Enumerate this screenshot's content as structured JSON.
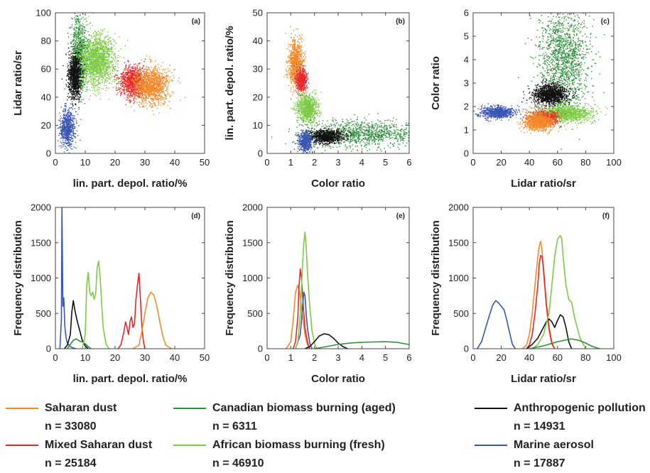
{
  "colors": {
    "saharan": "#f28a2b",
    "mixed": "#e8262a",
    "canadian": "#2f8f3a",
    "african": "#7ccb45",
    "anthro": "#111111",
    "marine": "#3a55b4"
  },
  "chart_data": [
    {
      "type": "scatter",
      "panel": "a",
      "xlabel": "lin. part. depol. ratio/%",
      "ylabel": "Lidar ratio/sr",
      "xlim": [
        0,
        50
      ],
      "ylim": [
        0,
        100
      ],
      "xticks": [
        "0",
        "10",
        "20",
        "30",
        "40",
        "50"
      ],
      "yticks": [
        "0",
        "20",
        "40",
        "60",
        "80",
        "100"
      ],
      "clusters": [
        {
          "series": "canadian",
          "cx": 8,
          "cy": 70,
          "sx": 1.5,
          "sy": 13,
          "n": 900
        },
        {
          "series": "african",
          "cx": 14,
          "cy": 66,
          "sx": 3,
          "sy": 9,
          "n": 1700
        },
        {
          "series": "anthro",
          "cx": 6.5,
          "cy": 55,
          "sx": 1.1,
          "sy": 8,
          "n": 900
        },
        {
          "series": "mixed",
          "cx": 26,
          "cy": 51,
          "sx": 2.2,
          "sy": 5.5,
          "n": 900
        },
        {
          "series": "saharan",
          "cx": 32,
          "cy": 48,
          "sx": 3,
          "sy": 6,
          "n": 1300
        },
        {
          "series": "marine",
          "cx": 4,
          "cy": 18,
          "sx": 1.3,
          "sy": 6.5,
          "n": 700
        }
      ]
    },
    {
      "type": "scatter",
      "panel": "b",
      "xlabel": "Color ratio",
      "ylabel": "lin. part. depol. ratio/%",
      "xlim": [
        0,
        6
      ],
      "ylim": [
        0,
        50
      ],
      "xticks": [
        "0",
        "1",
        "2",
        "3",
        "4",
        "5",
        "6"
      ],
      "yticks": [
        "0",
        "10",
        "20",
        "30",
        "40",
        "50"
      ],
      "clusters": [
        {
          "series": "saharan",
          "cx": 1.2,
          "cy": 32,
          "sx": 0.15,
          "sy": 4,
          "n": 900
        },
        {
          "series": "mixed",
          "cx": 1.45,
          "cy": 26,
          "sx": 0.12,
          "sy": 2,
          "n": 500
        },
        {
          "series": "african",
          "cx": 1.7,
          "cy": 16,
          "sx": 0.22,
          "sy": 2.5,
          "n": 900
        },
        {
          "series": "canadian",
          "cx": 4,
          "cy": 7,
          "sx": 1.2,
          "sy": 2.5,
          "n": 1100
        },
        {
          "series": "anthro",
          "cx": 2.5,
          "cy": 6,
          "sx": 0.35,
          "sy": 1.2,
          "n": 800
        },
        {
          "series": "marine",
          "cx": 1.6,
          "cy": 4,
          "sx": 0.15,
          "sy": 2,
          "n": 500
        }
      ]
    },
    {
      "type": "scatter",
      "panel": "c",
      "xlabel": "Lidar ratio/sr",
      "ylabel": "Color ratio",
      "xlim": [
        0,
        100
      ],
      "ylim": [
        0,
        6
      ],
      "xticks": [
        "0",
        "20",
        "40",
        "60",
        "80",
        "100"
      ],
      "yticks": [
        "0",
        "1",
        "2",
        "3",
        "4",
        "5",
        "6"
      ],
      "clusters": [
        {
          "series": "canadian",
          "cx": 65,
          "cy": 4,
          "sx": 9,
          "sy": 1.1,
          "n": 1500
        },
        {
          "series": "anthro",
          "cx": 55,
          "cy": 2.5,
          "sx": 6,
          "sy": 0.22,
          "n": 1200
        },
        {
          "series": "african",
          "cx": 65,
          "cy": 1.7,
          "sx": 9,
          "sy": 0.18,
          "n": 1200
        },
        {
          "series": "mixed",
          "cx": 50,
          "cy": 1.5,
          "sx": 5,
          "sy": 0.15,
          "n": 700
        },
        {
          "series": "saharan",
          "cx": 47,
          "cy": 1.35,
          "sx": 5,
          "sy": 0.18,
          "n": 900
        },
        {
          "series": "marine",
          "cx": 18,
          "cy": 1.75,
          "sx": 6,
          "sy": 0.12,
          "n": 800
        }
      ]
    },
    {
      "type": "line",
      "panel": "d",
      "xlabel": "lin. part. depol. ratio/%",
      "ylabel": "Frequency distribution",
      "xlim": [
        0,
        50
      ],
      "ylim": [
        0,
        2000
      ],
      "xticks": [
        "0",
        "10",
        "20",
        "30",
        "40",
        "50"
      ],
      "yticks": [
        "0",
        "500",
        "1000",
        "1500",
        "2000"
      ],
      "series": [
        {
          "name": "marine",
          "x": [
            1.5,
            2,
            2.2,
            2.5,
            2.8,
            3.2,
            3.6,
            4,
            5,
            6,
            7
          ],
          "y": [
            0,
            400,
            2000,
            600,
            720,
            300,
            150,
            80,
            30,
            10,
            0
          ]
        },
        {
          "name": "anthro",
          "x": [
            3,
            4,
            5,
            5.5,
            6,
            6.5,
            7,
            7.5,
            8,
            9,
            10,
            11
          ],
          "y": [
            0,
            50,
            200,
            520,
            680,
            550,
            450,
            360,
            280,
            120,
            40,
            0
          ]
        },
        {
          "name": "canadian",
          "x": [
            4,
            5,
            6,
            7,
            8,
            9,
            10,
            11,
            12
          ],
          "y": [
            0,
            60,
            120,
            140,
            110,
            100,
            70,
            30,
            0
          ]
        },
        {
          "name": "african",
          "x": [
            9,
            10,
            10.5,
            11,
            11.5,
            12,
            12.5,
            13,
            13.5,
            14,
            14.5,
            15,
            15.5,
            16,
            17,
            18
          ],
          "y": [
            0,
            200,
            900,
            1080,
            800,
            750,
            800,
            700,
            780,
            1150,
            1240,
            1000,
            650,
            300,
            60,
            0
          ]
        },
        {
          "name": "mixed",
          "x": [
            21,
            22,
            23,
            23.5,
            24,
            24.5,
            25,
            25.5,
            26,
            26.5,
            27,
            27.5,
            28,
            28.5,
            29,
            29.5,
            30
          ],
          "y": [
            0,
            60,
            250,
            380,
            300,
            200,
            380,
            450,
            300,
            350,
            700,
            900,
            1070,
            700,
            300,
            100,
            0
          ]
        },
        {
          "name": "saharan",
          "x": [
            26,
            28,
            29,
            30,
            31,
            32,
            33,
            34,
            35,
            36,
            37,
            39
          ],
          "y": [
            0,
            50,
            250,
            500,
            720,
            800,
            760,
            600,
            380,
            180,
            50,
            0
          ]
        }
      ]
    },
    {
      "type": "line",
      "panel": "e",
      "xlabel": "Color ratio",
      "ylabel": "Frequency distribution",
      "xlim": [
        0,
        6
      ],
      "ylim": [
        0,
        2000
      ],
      "xticks": [
        "0",
        "1",
        "2",
        "3",
        "4",
        "5",
        "6"
      ],
      "yticks": [
        "0",
        "500",
        "1000",
        "1500",
        "2000"
      ],
      "series": [
        {
          "name": "saharan",
          "x": [
            0.8,
            1,
            1.1,
            1.2,
            1.3,
            1.4,
            1.5,
            1.6,
            1.7,
            1.8
          ],
          "y": [
            0,
            100,
            400,
            800,
            900,
            750,
            450,
            200,
            60,
            0
          ]
        },
        {
          "name": "mixed",
          "x": [
            1.1,
            1.2,
            1.3,
            1.35,
            1.4,
            1.45,
            1.5,
            1.55,
            1.6,
            1.7,
            1.8
          ],
          "y": [
            0,
            100,
            450,
            900,
            1130,
            1000,
            750,
            500,
            300,
            100,
            0
          ]
        },
        {
          "name": "marine",
          "x": [
            1.2,
            1.4,
            1.5,
            1.55,
            1.6,
            1.65,
            1.7,
            1.8,
            1.9
          ],
          "y": [
            0,
            200,
            600,
            800,
            750,
            500,
            300,
            80,
            0
          ]
        },
        {
          "name": "african",
          "x": [
            1.2,
            1.3,
            1.4,
            1.5,
            1.55,
            1.6,
            1.65,
            1.7,
            1.8,
            1.9,
            2,
            2.1
          ],
          "y": [
            0,
            100,
            500,
            1200,
            1500,
            1650,
            1450,
            1100,
            600,
            250,
            80,
            0
          ]
        },
        {
          "name": "anthro",
          "x": [
            1.6,
            1.8,
            2,
            2.2,
            2.4,
            2.6,
            2.8,
            3,
            3.2,
            3.4
          ],
          "y": [
            0,
            30,
            100,
            180,
            210,
            200,
            150,
            80,
            30,
            0
          ]
        },
        {
          "name": "canadian",
          "x": [
            2,
            2.5,
            3,
            3.5,
            4,
            4.5,
            5,
            5.5,
            5.8,
            6
          ],
          "y": [
            0,
            30,
            60,
            80,
            90,
            95,
            100,
            90,
            70,
            60
          ]
        }
      ]
    },
    {
      "type": "line",
      "panel": "f",
      "xlabel": "Lidar ratio/sr",
      "ylabel": "Frequency distribution",
      "xlim": [
        0,
        100
      ],
      "ylim": [
        0,
        2000
      ],
      "xticks": [
        "0",
        "20",
        "40",
        "60",
        "80",
        "100"
      ],
      "yticks": [
        "0",
        "500",
        "1000",
        "1500",
        "2000"
      ],
      "series": [
        {
          "name": "marine",
          "x": [
            3,
            6,
            9,
            12,
            14,
            16,
            18,
            20,
            22,
            24,
            26,
            28,
            30
          ],
          "y": [
            0,
            100,
            300,
            500,
            620,
            680,
            650,
            600,
            550,
            400,
            220,
            60,
            0
          ]
        },
        {
          "name": "saharan",
          "x": [
            35,
            38,
            40,
            42,
            44,
            46,
            47,
            48,
            49,
            50,
            52,
            54,
            56,
            58
          ],
          "y": [
            0,
            50,
            200,
            500,
            900,
            1300,
            1450,
            1520,
            1400,
            1100,
            600,
            250,
            60,
            0
          ]
        },
        {
          "name": "mixed",
          "x": [
            38,
            40,
            42,
            44,
            46,
            47,
            48,
            49,
            50,
            51,
            52,
            54,
            56,
            58
          ],
          "y": [
            0,
            50,
            200,
            500,
            900,
            1200,
            1320,
            1300,
            1150,
            900,
            650,
            300,
            80,
            0
          ]
        },
        {
          "name": "anthro",
          "x": [
            38,
            42,
            46,
            50,
            52,
            54,
            56,
            58,
            60,
            62,
            64,
            66,
            68,
            70
          ],
          "y": [
            0,
            60,
            150,
            300,
            380,
            420,
            380,
            300,
            400,
            480,
            450,
            300,
            100,
            0
          ]
        },
        {
          "name": "african",
          "x": [
            42,
            46,
            50,
            54,
            56,
            58,
            60,
            62,
            63,
            64,
            66,
            68,
            70,
            72,
            76,
            80
          ],
          "y": [
            0,
            60,
            200,
            500,
            900,
            1300,
            1550,
            1600,
            1560,
            1300,
            900,
            700,
            660,
            450,
            150,
            0
          ]
        },
        {
          "name": "canadian",
          "x": [
            40,
            45,
            50,
            55,
            60,
            65,
            70,
            75,
            80,
            85,
            90
          ],
          "y": [
            0,
            20,
            40,
            70,
            100,
            120,
            140,
            120,
            80,
            30,
            0
          ]
        }
      ]
    }
  ],
  "legend": [
    {
      "key": "saharan",
      "label": "Saharan dust",
      "n": "n = 33080"
    },
    {
      "key": "mixed",
      "label": "Mixed Saharan dust",
      "n": "n = 25184"
    },
    {
      "key": "canadian",
      "label": "Canadian biomass burning (aged)",
      "n": "n = 6311"
    },
    {
      "key": "african",
      "label": "African biomass burning (fresh)",
      "n": "n = 46910"
    },
    {
      "key": "anthro",
      "label": "Anthropogenic pollution",
      "n": "n = 14931"
    },
    {
      "key": "marine",
      "label": "Marine aerosol",
      "n": "n = 17887"
    }
  ]
}
